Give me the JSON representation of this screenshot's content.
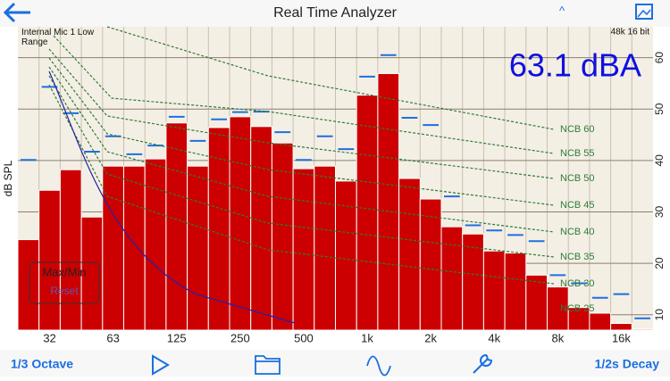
{
  "header": {
    "title": "Real Time Analyzer",
    "caret": "^"
  },
  "toolbar": {
    "left": "1/3 Octave",
    "right": "1/2s Decay"
  },
  "chart_data": {
    "type": "bar",
    "input_label": "Internal Mic 1 Low Range",
    "format_label": "48k 16 bit",
    "level_readout": "63.1 dBA",
    "y_label": "dB SPL",
    "button_label": "Max/Min",
    "reset_label": "Reset",
    "annotations": [
      "NCB 60",
      "NCB 55",
      "NCB 50",
      "NCB 45",
      "NCB 40",
      "NCB 35",
      "NCB 30",
      "NCB 25"
    ],
    "categories": [
      null,
      "32",
      null,
      null,
      "63",
      null,
      null,
      "125",
      null,
      null,
      "250",
      null,
      null,
      "500",
      null,
      null,
      "1k",
      null,
      null,
      "2k",
      null,
      null,
      "4k",
      null,
      null,
      "8k",
      null,
      null,
      "16k",
      null
    ],
    "series": [
      {
        "name": "Level",
        "color": "#cc0000",
        "values": [
          24.6,
          34.2,
          38.2,
          29.0,
          38.9,
          38.9,
          40.3,
          47.3,
          38.9,
          46.4,
          48.5,
          46.6,
          43.4,
          38.4,
          38.9,
          36.0,
          52.7,
          56.9,
          36.5,
          32.5,
          27.1,
          25.7,
          22.4,
          22.0,
          17.7,
          15.4,
          11.4,
          10.3,
          8.3,
          7.2
        ]
      },
      {
        "name": "Max",
        "color": "#1e6fe0",
        "values": [
          40.1,
          54.3,
          49.2,
          41.7,
          44.7,
          41.2,
          42.9,
          48.5,
          43.8,
          48.0,
          49.4,
          49.5,
          45.5,
          40.1,
          44.7,
          42.2,
          56.3,
          60.5,
          48.3,
          46.9,
          33.0,
          27.4,
          26.4,
          25.5,
          24.3,
          17.7,
          16.1,
          13.3,
          14.0,
          9.3
        ]
      }
    ],
    "ylim": [
      7,
      66
    ],
    "yticks": [
      10,
      20,
      30,
      40,
      50,
      60
    ],
    "grid": true
  }
}
